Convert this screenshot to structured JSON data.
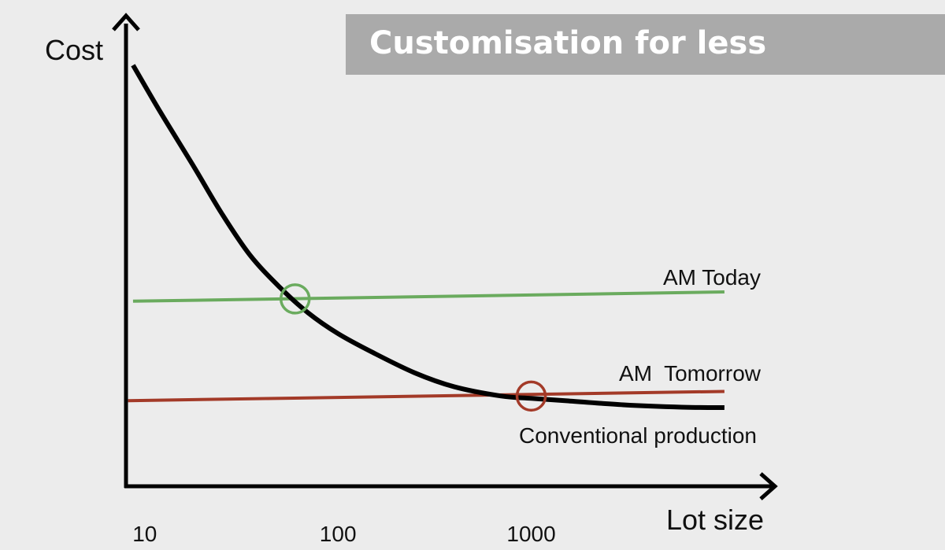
{
  "title": "Customisation for less",
  "colors": {
    "background": "#ececec",
    "banner": "#aaaaaa",
    "banner_text": "#ffffff",
    "conventional": "#000000",
    "am_today": "#6aab5e",
    "am_tomorrow": "#a33a28"
  },
  "chart_data": {
    "type": "line",
    "xlabel": "Lot size",
    "ylabel": "Cost",
    "x_scale": "log",
    "x_ticks": [
      {
        "value": 10,
        "label": "10"
      },
      {
        "value": 100,
        "label": "100"
      },
      {
        "value": 1000,
        "label": "1000"
      }
    ],
    "xlim": [
      8,
      16000
    ],
    "ylim": [
      0,
      100
    ],
    "grid": false,
    "series": [
      {
        "name": "Conventional production",
        "color_key": "conventional",
        "x": [
          8.7,
          12,
          18,
          25,
          35,
          50,
          70,
          100,
          150,
          250,
          400,
          700,
          1000,
          1500,
          3000,
          6000,
          10000
        ],
        "y": [
          91,
          81,
          69,
          59,
          50,
          43,
          37.5,
          33,
          29,
          24.5,
          21.5,
          19.5,
          19,
          18.5,
          17.6,
          17.1,
          17
        ]
      },
      {
        "name": "AM Today",
        "color_key": "am_today",
        "x": [
          8.7,
          10000
        ],
        "y": [
          40,
          42
        ]
      },
      {
        "name": "AM  Tomorrow",
        "color_key": "am_tomorrow",
        "x": [
          8.2,
          10000
        ],
        "y": [
          18.5,
          20.5
        ]
      }
    ],
    "markers": [
      {
        "name": "AM Today break-even",
        "x": 60,
        "y": 40.5,
        "color_key": "am_today"
      },
      {
        "name": "AM Tomorrow break-even",
        "x": 1000,
        "y": 19.5,
        "color_key": "am_tomorrow"
      }
    ]
  }
}
